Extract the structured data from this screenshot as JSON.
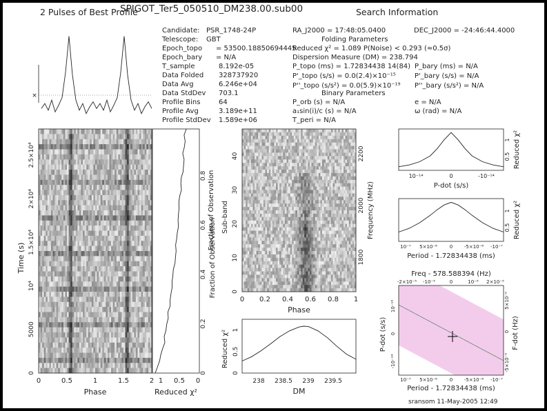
{
  "header": {
    "profile_title": "2 Pulses of Best Profile",
    "file_title": "SPIGOT_Ter5_050510_DM238.00.sub00",
    "search_title": "Search Information"
  },
  "info_left": [
    {
      "label": "Candidate:",
      "value": "PSR_1748-24P"
    },
    {
      "label": "Telescope:",
      "value": "GBT"
    },
    {
      "label": "Epoch_topo",
      "value": "= 53500.18850694445"
    },
    {
      "label": "Epoch_bary",
      "value": "= N/A"
    },
    {
      "label": "T_sample",
      "value": "8.192e-05"
    },
    {
      "label": "Data Folded",
      "value": "328737920"
    },
    {
      "label": "Data Avg",
      "value": "6.246e+04"
    },
    {
      "label": "Data StdDev",
      "value": "703.1"
    },
    {
      "label": "Profile Bins",
      "value": "64"
    },
    {
      "label": "Profile Avg",
      "value": "3.189e+11"
    },
    {
      "label": "Profile StdDev",
      "value": "1.589e+06"
    }
  ],
  "info_mid": {
    "ra": "RA_J2000 = 17:48:05.0400",
    "dec": "DEC_J2000 = -24:46:44.4000",
    "folding_params": "Folding Parameters",
    "reduced_chi": "Reduced χ² = 1.089   P(Noise) < 0.293   (≈0.5σ)",
    "dm": "Dispersion Measure (DM) = 238.794",
    "p_topo": "P_topo (ms) = 1.72834438 14(84)",
    "p_bary": "P_bary (ms) = N/A",
    "pd_topo": "P'_topo (s/s) = 0.0(2.4)×10⁻¹⁵",
    "pd_bary": "P'_bary (s/s) = N/A",
    "pdd_topo": "P''_topo (s/s²) = 0.0(5.9)×10⁻¹⁹",
    "pdd_bary": "P''_bary (s/s²) = N/A",
    "binary_params": "Binary Parameters",
    "p_orb": "P_orb (s) = N/A",
    "e": "e = N/A",
    "a1": "a₁sin(i)/c (s) = N/A",
    "omega": "ω (rad) = N/A",
    "t_peri": "T_peri = N/A"
  },
  "footer": "sransom  11-May-2005 12:49",
  "colors": {
    "ink": "#222222",
    "sheet": "#ffffff",
    "frame": "#000000"
  },
  "chart_data": [
    {
      "type": "line",
      "name": "profile",
      "title": "2 Pulses of Best Profile",
      "x": [
        0,
        0.0625,
        0.125,
        0.1875,
        0.25,
        0.3125,
        0.375,
        0.4375,
        0.5,
        0.5625,
        0.625,
        0.6875,
        0.75,
        0.8125,
        0.875,
        0.9375,
        1,
        1.0625,
        1.125,
        1.1875,
        1.25,
        1.3125,
        1.375,
        1.4375,
        1.5,
        1.5625,
        1.625,
        1.6875,
        1.75,
        1.8125,
        1.875,
        1.9375,
        2
      ],
      "values": [
        0.12,
        0.18,
        0.1,
        0.22,
        0.08,
        0.16,
        0.25,
        0.55,
        0.98,
        0.52,
        0.22,
        0.1,
        0.18,
        0.06,
        0.14,
        0.2,
        0.12,
        0.18,
        0.1,
        0.22,
        0.08,
        0.16,
        0.25,
        0.55,
        0.98,
        0.52,
        0.22,
        0.1,
        0.18,
        0.06,
        0.14,
        0.2,
        0.12
      ]
    },
    {
      "type": "heatmap",
      "name": "time-phase",
      "xlabel": "Phase",
      "ylabel": "Time (s)",
      "xlim": [
        0,
        2
      ],
      "ylim": [
        0,
        28000
      ],
      "xticks": [
        "0",
        "0.5",
        "1",
        "1.5",
        "2"
      ],
      "yticks": [
        "0",
        "5000",
        "10⁴",
        "1.5×10⁴",
        "2×10⁴",
        "2.5×10⁴"
      ],
      "pulse_phases": [
        0.55,
        1.55
      ]
    },
    {
      "type": "line",
      "name": "time-chi",
      "xlabel": "Reduced χ²",
      "ylabel": "Fraction of Observation",
      "xticks": [
        "1",
        "0.5",
        "0"
      ],
      "yticks": [
        "0",
        "0.2",
        "0.4",
        "0.6",
        "0.8"
      ]
    },
    {
      "type": "heatmap",
      "name": "subband-phase",
      "xlabel": "Phase",
      "ylabel": "Sub-band",
      "y2label": "Frequency (MHz)",
      "xlim": [
        0,
        1
      ],
      "ylim": [
        0,
        48
      ],
      "xticks": [
        "0",
        "0.2",
        "0.4",
        "0.6",
        "0.8",
        "1"
      ],
      "yticks": [
        "0",
        "10",
        "20",
        "30",
        "40"
      ],
      "y2ticks": [
        "1800",
        "2000",
        "2200"
      ]
    },
    {
      "type": "line",
      "name": "dm-chi",
      "xlabel": "DM",
      "ylabel": "Reduced χ²",
      "x": [
        237.5,
        237.7,
        237.9,
        238.1,
        238.3,
        238.5,
        238.7,
        238.8,
        238.9,
        239.1,
        239.3,
        239.5,
        239.7,
        239.9
      ],
      "values": [
        0.28,
        0.38,
        0.52,
        0.68,
        0.85,
        0.98,
        1.07,
        1.09,
        1.08,
        0.98,
        0.82,
        0.62,
        0.44,
        0.32
      ],
      "xticks": [
        "238",
        "238.5",
        "239",
        "239.5"
      ],
      "yticks": [
        "0",
        "0.5",
        "1"
      ]
    },
    {
      "type": "line",
      "name": "pdot-chi",
      "xlabel": "P-dot (s/s)",
      "ylabel": "Reduced χ²",
      "x": [
        -1.5,
        -1.2,
        -0.9,
        -0.6,
        -0.4,
        -0.2,
        0,
        0.2,
        0.4,
        0.6,
        0.9,
        1.2,
        1.5
      ],
      "values": [
        0.1,
        0.15,
        0.24,
        0.4,
        0.6,
        0.85,
        1.05,
        0.85,
        0.6,
        0.4,
        0.24,
        0.15,
        0.1
      ],
      "xticks": [
        "10⁻¹⁴",
        "0",
        "-10⁻¹⁴"
      ],
      "yticks": [
        "0.5",
        "1"
      ]
    },
    {
      "type": "line",
      "name": "period-chi",
      "xlabel": "Period - 1.72834438 (ms)",
      "ylabel": "Reduced χ²",
      "x": [
        -1.5,
        -1.2,
        -0.9,
        -0.6,
        -0.4,
        -0.2,
        0,
        0.2,
        0.4,
        0.6,
        0.9,
        1.2,
        1.5
      ],
      "values": [
        0.25,
        0.35,
        0.5,
        0.7,
        0.85,
        0.98,
        1.05,
        0.98,
        0.85,
        0.7,
        0.5,
        0.35,
        0.25
      ],
      "xticks": [
        "10⁻⁷",
        "5×10⁻⁸",
        "0",
        "-5×10⁻⁸",
        "-10⁻⁷"
      ],
      "yticks": [
        "0.5",
        "1"
      ]
    },
    {
      "type": "heatmap",
      "name": "ppdot-chi",
      "title": "Freq - 578.588394 (Hz)",
      "xlabel": "Period - 1.72834438 (ms)",
      "ylabel": "P-dot (s/s)",
      "y2label": "F-dot (Hz)",
      "xticks": [
        "10⁻⁷",
        "5×10⁻⁸",
        "0",
        "-5×10⁻⁸",
        "-10⁻⁷"
      ],
      "x2ticks": [
        "-2×10⁻⁵",
        "-10⁻⁵",
        "0",
        "10⁻⁵",
        "2×10⁻⁵"
      ],
      "yticks": [
        "-10⁻¹⁴",
        "0",
        "10⁻¹⁴"
      ],
      "y2ticks": [
        "5×10⁻⁹",
        "0",
        "-5×10⁻⁹"
      ],
      "best_fit": [
        0,
        0
      ]
    }
  ]
}
